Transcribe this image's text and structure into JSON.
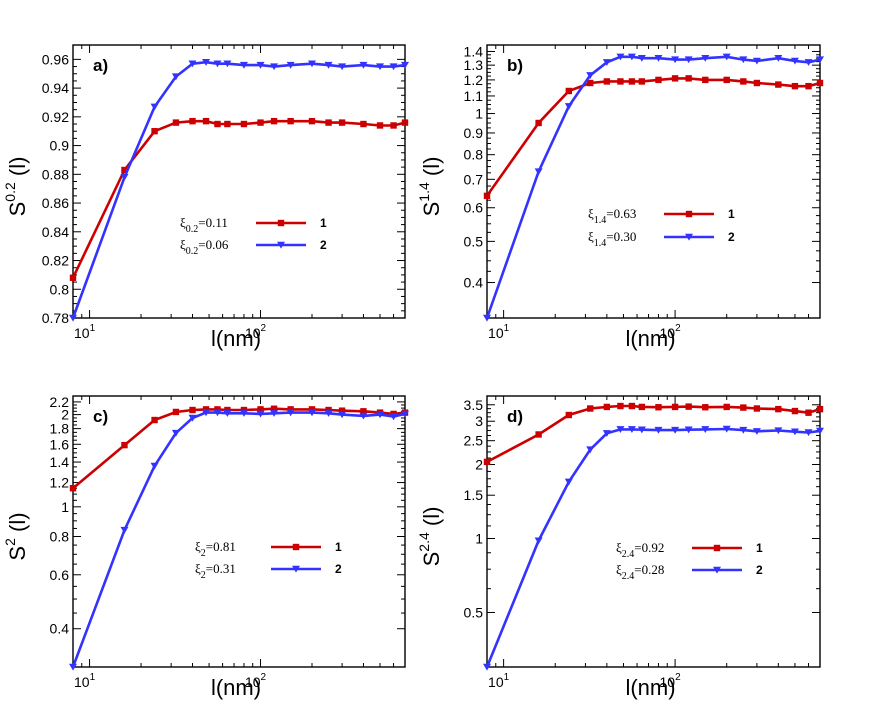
{
  "figure": {
    "x_unit_label": "l(nm)"
  },
  "colors": {
    "series1": "#cc0000",
    "series2": "#3333ff"
  },
  "chart_data": [
    {
      "type": "line",
      "panel_label": "a)",
      "xscale": "log",
      "yscale": "linear",
      "xlim": [
        8,
        700
      ],
      "ylim": [
        0.78,
        0.97
      ],
      "ylabel_base": "S",
      "ylabel_exp": "0.2",
      "ylabel_suffix": "(l)",
      "xlabel": "l(nm)",
      "yticks": [
        0.78,
        0.8,
        0.82,
        0.84,
        0.86,
        0.88,
        0.9,
        0.92,
        0.94,
        0.96
      ],
      "ytick_labels": [
        "0.78",
        "0.8",
        "0.82",
        "0.84",
        "0.86",
        "0.88",
        "0.9",
        "0.92",
        "0.94",
        "0.96"
      ],
      "xtick_labels": [
        {
          "base": "10",
          "exp": "1"
        },
        {
          "base": "10",
          "exp": "2"
        }
      ],
      "legend": [
        {
          "xi": "ξ",
          "sub": "0.2",
          "value": "=0.11",
          "id": "1"
        },
        {
          "xi": "ξ",
          "sub": "0.2",
          "value": "=0.06",
          "id": "2"
        }
      ],
      "series": [
        {
          "name": "1",
          "marker": "square",
          "x": [
            8,
            16,
            24,
            32,
            40,
            48,
            56,
            64,
            80,
            100,
            120,
            150,
            200,
            250,
            300,
            400,
            500,
            600,
            700
          ],
          "y": [
            0.808,
            0.883,
            0.91,
            0.916,
            0.917,
            0.917,
            0.915,
            0.915,
            0.915,
            0.916,
            0.917,
            0.917,
            0.917,
            0.916,
            0.916,
            0.915,
            0.914,
            0.914,
            0.916
          ]
        },
        {
          "name": "2",
          "marker": "triangle-down",
          "x": [
            8,
            16,
            24,
            32,
            40,
            48,
            56,
            64,
            80,
            100,
            120,
            150,
            200,
            250,
            300,
            400,
            500,
            600,
            700
          ],
          "y": [
            0.78,
            0.878,
            0.927,
            0.948,
            0.957,
            0.958,
            0.957,
            0.957,
            0.956,
            0.956,
            0.955,
            0.956,
            0.957,
            0.956,
            0.955,
            0.956,
            0.955,
            0.955,
            0.956
          ]
        }
      ]
    },
    {
      "type": "line",
      "panel_label": "b)",
      "xscale": "log",
      "yscale": "log",
      "xlim": [
        8,
        700
      ],
      "ylim": [
        0.33,
        1.45
      ],
      "ylabel_base": "S",
      "ylabel_exp": "1.4",
      "ylabel_suffix": "(l)",
      "xlabel": "l(nm)",
      "yticks": [
        0.4,
        0.5,
        0.6,
        0.7,
        0.8,
        0.9,
        1,
        1.1,
        1.2,
        1.3,
        1.4
      ],
      "ytick_labels": [
        "0.4",
        "0.5",
        "0.6",
        "0.7",
        "0.8",
        "0.9",
        "1",
        "1.1",
        "1.2",
        "1.3",
        "1.4"
      ],
      "xtick_labels": [
        {
          "base": "10",
          "exp": "1"
        },
        {
          "base": "10",
          "exp": "2"
        }
      ],
      "legend": [
        {
          "xi": "ξ",
          "sub": "1.4",
          "value": "=0.63",
          "id": "1"
        },
        {
          "xi": "ξ",
          "sub": "1.4",
          "value": "=0.30",
          "id": "2"
        }
      ],
      "series": [
        {
          "name": "1",
          "marker": "square",
          "x": [
            8,
            16,
            24,
            32,
            40,
            48,
            56,
            64,
            80,
            100,
            120,
            150,
            200,
            250,
            300,
            400,
            500,
            600,
            700
          ],
          "y": [
            0.64,
            0.95,
            1.13,
            1.18,
            1.19,
            1.19,
            1.19,
            1.19,
            1.2,
            1.21,
            1.21,
            1.2,
            1.2,
            1.19,
            1.18,
            1.17,
            1.16,
            1.16,
            1.18
          ]
        },
        {
          "name": "2",
          "marker": "triangle-down",
          "x": [
            8,
            16,
            24,
            32,
            40,
            48,
            56,
            64,
            80,
            100,
            120,
            150,
            200,
            250,
            300,
            400,
            500,
            600,
            700
          ],
          "y": [
            0.33,
            0.73,
            1.04,
            1.23,
            1.32,
            1.36,
            1.36,
            1.35,
            1.35,
            1.34,
            1.34,
            1.35,
            1.36,
            1.34,
            1.33,
            1.35,
            1.33,
            1.32,
            1.34
          ]
        }
      ]
    },
    {
      "type": "line",
      "panel_label": "c)",
      "xscale": "log",
      "yscale": "log",
      "xlim": [
        8,
        700
      ],
      "ylim": [
        0.3,
        2.3
      ],
      "ylabel_base": "S",
      "ylabel_exp": "2",
      "ylabel_suffix": "(l)",
      "xlabel": "l(nm)",
      "yticks": [
        0.4,
        0.6,
        0.8,
        1,
        1.2,
        1.4,
        1.6,
        1.8,
        2,
        2.2
      ],
      "ytick_labels": [
        "0.4",
        "0.6",
        "0.8",
        "1",
        "1.2",
        "1.4",
        "1.6",
        "1.8",
        "2",
        "2.2"
      ],
      "xtick_labels": [
        {
          "base": "10",
          "exp": "1"
        },
        {
          "base": "10",
          "exp": "2"
        }
      ],
      "legend": [
        {
          "xi": "ξ",
          "sub": "2",
          "value": "=0.81",
          "id": "1"
        },
        {
          "xi": "ξ",
          "sub": "2",
          "value": "=0.31",
          "id": "2"
        }
      ],
      "series": [
        {
          "name": "1",
          "marker": "square",
          "x": [
            8,
            16,
            24,
            32,
            40,
            48,
            56,
            64,
            80,
            100,
            120,
            150,
            200,
            250,
            300,
            400,
            500,
            600,
            700
          ],
          "y": [
            1.15,
            1.59,
            1.92,
            2.04,
            2.07,
            2.08,
            2.08,
            2.07,
            2.07,
            2.08,
            2.09,
            2.08,
            2.08,
            2.07,
            2.06,
            2.05,
            2.03,
            2.01,
            2.03
          ]
        },
        {
          "name": "2",
          "marker": "triangle-down",
          "x": [
            8,
            16,
            24,
            32,
            40,
            48,
            56,
            64,
            80,
            100,
            120,
            150,
            200,
            250,
            300,
            400,
            500,
            600,
            700
          ],
          "y": [
            0.3,
            0.84,
            1.36,
            1.74,
            1.95,
            2.03,
            2.03,
            2.02,
            2.02,
            2.01,
            2.02,
            2.03,
            2.03,
            2.02,
            2.0,
            1.98,
            2.0,
            1.97,
            2.01
          ]
        }
      ]
    },
    {
      "type": "line",
      "panel_label": "d)",
      "xscale": "log",
      "yscale": "log",
      "xlim": [
        8,
        700
      ],
      "ylim": [
        0.3,
        3.8
      ],
      "ylabel_base": "S",
      "ylabel_exp": "2.4",
      "ylabel_suffix": "(l)",
      "xlabel": "l(nm)",
      "yticks": [
        0.5,
        1,
        1.5,
        2,
        2.5,
        3,
        3.5
      ],
      "ytick_labels": [
        "0.5",
        "1",
        "1.5",
        "2",
        "2.5",
        "3",
        "3.5"
      ],
      "xtick_labels": [
        {
          "base": "10",
          "exp": "1"
        },
        {
          "base": "10",
          "exp": "2"
        }
      ],
      "legend": [
        {
          "xi": "ξ",
          "sub": "2.4",
          "value": "=0.92",
          "id": "1"
        },
        {
          "xi": "ξ",
          "sub": "2.4",
          "value": "=0.28",
          "id": "2"
        }
      ],
      "series": [
        {
          "name": "1",
          "marker": "square",
          "x": [
            8,
            16,
            24,
            32,
            40,
            48,
            56,
            64,
            80,
            100,
            120,
            150,
            200,
            250,
            300,
            400,
            500,
            600,
            700
          ],
          "y": [
            2.05,
            2.65,
            3.18,
            3.38,
            3.43,
            3.46,
            3.46,
            3.43,
            3.42,
            3.43,
            3.44,
            3.42,
            3.43,
            3.41,
            3.38,
            3.36,
            3.3,
            3.25,
            3.36
          ]
        },
        {
          "name": "2",
          "marker": "triangle-down",
          "x": [
            8,
            16,
            24,
            32,
            40,
            48,
            56,
            64,
            80,
            100,
            120,
            150,
            200,
            250,
            300,
            400,
            500,
            600,
            700
          ],
          "y": [
            0.3,
            0.98,
            1.7,
            2.3,
            2.68,
            2.78,
            2.78,
            2.77,
            2.76,
            2.76,
            2.77,
            2.78,
            2.79,
            2.76,
            2.73,
            2.75,
            2.72,
            2.7,
            2.74
          ]
        }
      ]
    }
  ]
}
